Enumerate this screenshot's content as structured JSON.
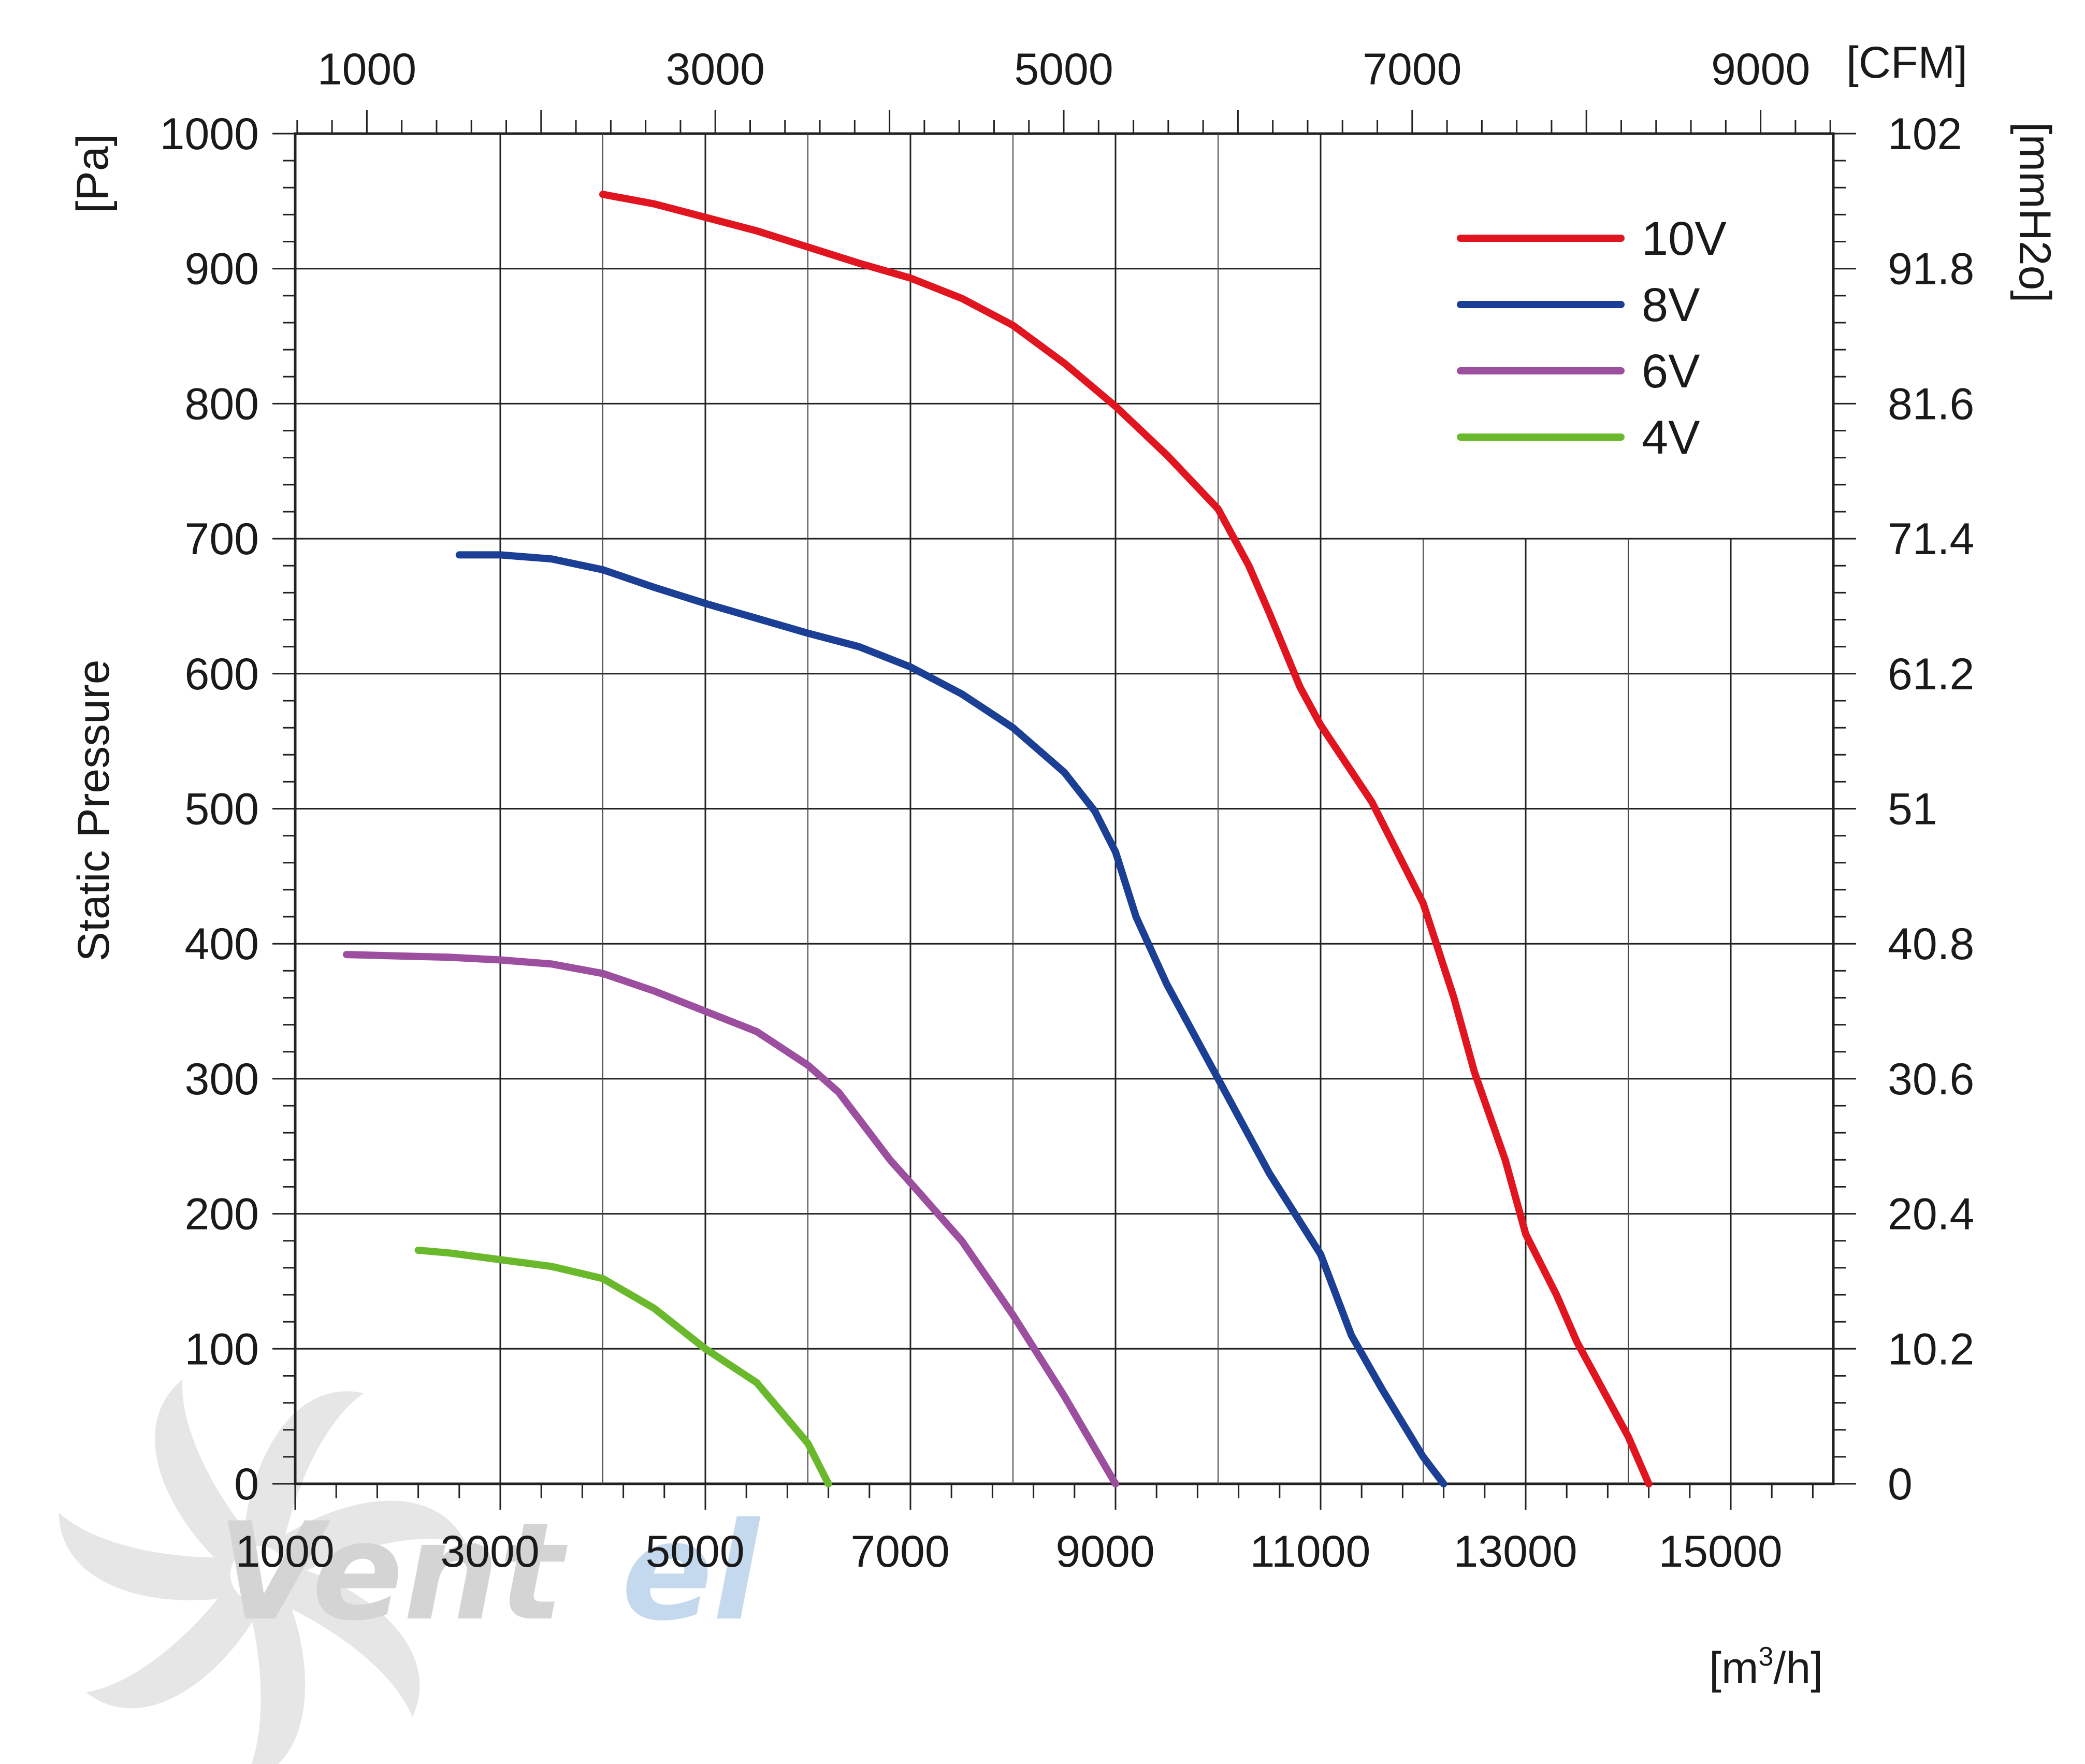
{
  "chart_data": {
    "type": "line",
    "title": "",
    "ylabel": "Static Pressure",
    "y_unit_left": "[Pa]",
    "y_unit_right": "[mmH2o]",
    "x_unit_bottom_prefix": "[m",
    "x_unit_bottom_sup": "3",
    "x_unit_bottom_suffix": "/h]",
    "x_unit_top": "[CFM]",
    "xlim": [
      1000,
      16000
    ],
    "ylim": [
      0,
      1000
    ],
    "x_ticks_bottom": [
      "1000",
      "3000",
      "5000",
      "7000",
      "9000",
      "11000",
      "13000",
      "15000"
    ],
    "x_ticks_top": [
      "1000",
      "3000",
      "5000",
      "7000",
      "9000"
    ],
    "y_ticks_left": [
      "0",
      "100",
      "200",
      "300",
      "400",
      "500",
      "600",
      "700",
      "800",
      "900",
      "1000"
    ],
    "y_ticks_right": [
      "0",
      "10.2",
      "20.4",
      "30.6",
      "40.8",
      "51",
      "61.2",
      "71.4",
      "81.6",
      "91.8",
      "102"
    ],
    "grid": true,
    "legend_position": "top-right",
    "series": [
      {
        "name": "10V",
        "color": "#e0151f",
        "x": [
          4000,
          4500,
          5000,
          5500,
          6000,
          6500,
          7000,
          7500,
          8000,
          8500,
          9000,
          9500,
          10000,
          10300,
          10500,
          10800,
          11000,
          11500,
          12000,
          12300,
          12500,
          12800,
          13000,
          13300,
          13500,
          14000,
          14200
        ],
        "y": [
          955,
          948,
          938,
          928,
          916,
          904,
          893,
          878,
          858,
          830,
          798,
          762,
          722,
          680,
          645,
          590,
          562,
          505,
          430,
          360,
          305,
          240,
          185,
          140,
          105,
          35,
          0
        ]
      },
      {
        "name": "8V",
        "color": "#1b3f94",
        "x": [
          2600,
          3000,
          3500,
          4000,
          4500,
          5000,
          5500,
          6000,
          6500,
          7000,
          7500,
          8000,
          8500,
          8800,
          9000,
          9200,
          9500,
          10000,
          10500,
          11000,
          11300,
          11600,
          12000,
          12200
        ],
        "y": [
          688,
          688,
          685,
          677,
          664,
          652,
          641,
          630,
          620,
          605,
          585,
          560,
          527,
          498,
          468,
          420,
          370,
          300,
          230,
          170,
          110,
          70,
          20,
          0
        ]
      },
      {
        "name": "6V",
        "color": "#9c4f9e",
        "x": [
          1500,
          2000,
          2500,
          3000,
          3500,
          4000,
          4500,
          5000,
          5500,
          6000,
          6300,
          6500,
          6800,
          7000,
          7500,
          8000,
          8500,
          9000
        ],
        "y": [
          392,
          391,
          390,
          388,
          385,
          378,
          365,
          350,
          335,
          310,
          290,
          270,
          240,
          223,
          180,
          125,
          65,
          0
        ]
      },
      {
        "name": "4V",
        "color": "#6ab92d",
        "x": [
          2200,
          2500,
          3000,
          3500,
          4000,
          4500,
          5000,
          5500,
          6000,
          6200
        ],
        "y": [
          173,
          171,
          166,
          161,
          152,
          130,
          100,
          75,
          30,
          0
        ]
      }
    ]
  },
  "watermark": {
    "text_a": "Vent",
    "text_b": "el",
    "color_a": "#d0d0d0",
    "color_b": "#bed5ec",
    "fan_color": "#e4e4e4"
  }
}
